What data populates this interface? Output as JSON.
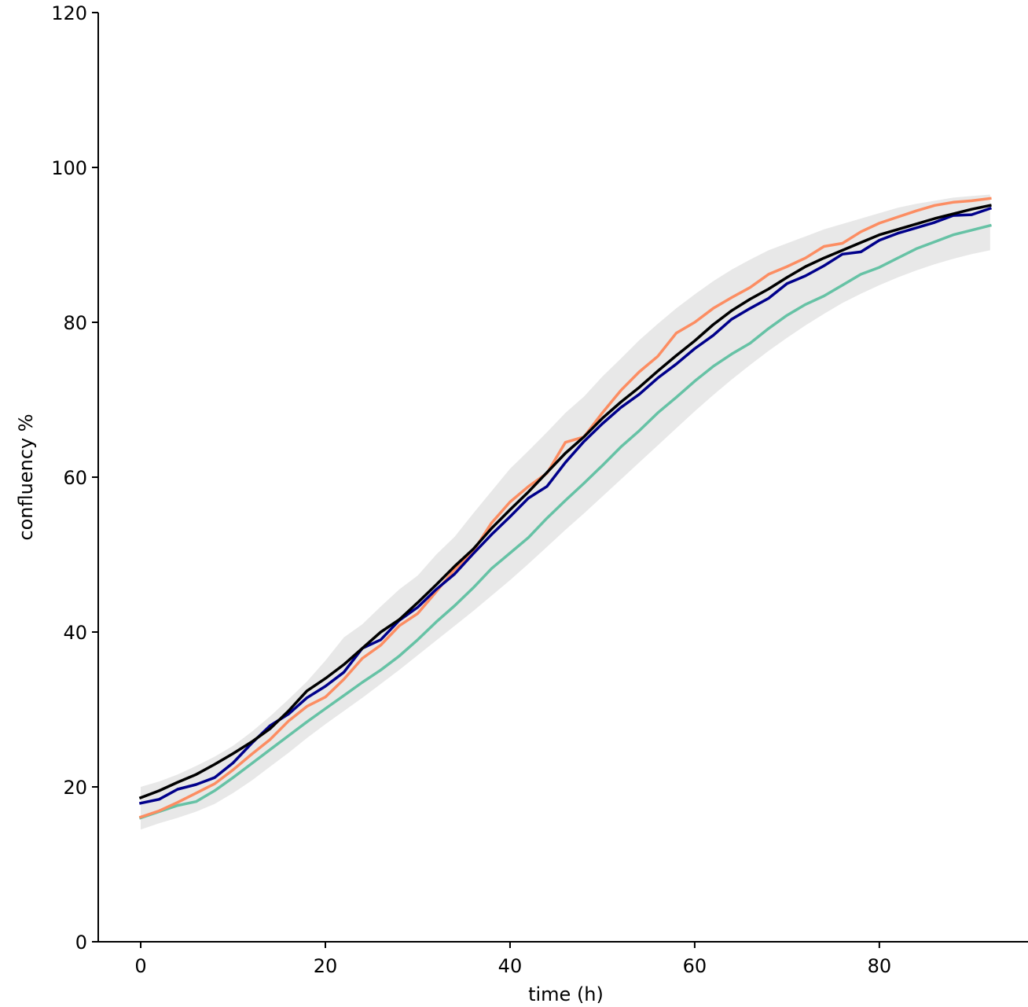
{
  "chart_data": {
    "type": "line",
    "title": "",
    "xlabel": "time (h)",
    "ylabel": "confluency %",
    "xlim": [
      -4.6,
      96.1
    ],
    "ylim": [
      0,
      120
    ],
    "xticks": [
      0,
      20,
      40,
      60,
      80
    ],
    "yticks": [
      0,
      20,
      40,
      60,
      80,
      100,
      120
    ],
    "grid": false,
    "legend": "none",
    "x": [
      0,
      2,
      4,
      6,
      8,
      10,
      12,
      14,
      16,
      18,
      20,
      22,
      24,
      26,
      28,
      30,
      32,
      34,
      36,
      38,
      40,
      42,
      44,
      46,
      48,
      50,
      52,
      54,
      56,
      58,
      60,
      62,
      64,
      66,
      68,
      70,
      72,
      74,
      76,
      78,
      80,
      82,
      84,
      86,
      88,
      90,
      92
    ],
    "band": {
      "color": "#cccccc",
      "lower": [
        14.5,
        15.3,
        16.0,
        16.8,
        17.8,
        19.2,
        20.8,
        22.6,
        24.4,
        26.3,
        28.1,
        29.8,
        31.5,
        33.3,
        35.1,
        37.0,
        38.9,
        40.8,
        42.7,
        44.7,
        46.7,
        48.8,
        51.0,
        53.2,
        55.3,
        57.5,
        59.7,
        61.9,
        64.1,
        66.3,
        68.5,
        70.6,
        72.6,
        74.5,
        76.3,
        78.0,
        79.6,
        81.1,
        82.5,
        83.7,
        84.8,
        85.8,
        86.7,
        87.5,
        88.2,
        88.8,
        89.3
      ],
      "upper": [
        20.0,
        20.7,
        21.6,
        22.7,
        23.9,
        25.3,
        27.1,
        29.1,
        31.3,
        33.6,
        36.3,
        39.3,
        41.0,
        43.3,
        45.5,
        47.3,
        50.0,
        52.3,
        55.3,
        58.2,
        61.1,
        63.4,
        65.8,
        68.3,
        70.4,
        73.0,
        75.3,
        77.7,
        79.8,
        81.8,
        83.6,
        85.3,
        86.8,
        88.1,
        89.3,
        90.2,
        91.1,
        92.0,
        92.7,
        93.4,
        94.1,
        94.8,
        95.3,
        95.7,
        96.1,
        96.3,
        96.5
      ]
    },
    "series": [
      {
        "color": "#66c2a5",
        "values": [
          16.0,
          16.8,
          17.6,
          18.1,
          19.5,
          21.2,
          23.0,
          24.8,
          26.6,
          28.4,
          30.1,
          31.8,
          33.5,
          35.1,
          36.9,
          39.0,
          41.3,
          43.4,
          45.7,
          48.2,
          50.2,
          52.2,
          54.7,
          57.0,
          59.2,
          61.5,
          63.9,
          66.0,
          68.3,
          70.3,
          72.4,
          74.3,
          75.9,
          77.3,
          79.2,
          80.9,
          82.3,
          83.4,
          84.8,
          86.2,
          87.1,
          88.3,
          89.5,
          90.4,
          91.3,
          91.9,
          92.5
        ]
      },
      {
        "color": "#fc8d62",
        "values": [
          16.1,
          16.9,
          18.0,
          19.2,
          20.4,
          22.2,
          24.2,
          26.1,
          28.5,
          30.4,
          31.6,
          33.9,
          36.6,
          38.3,
          40.8,
          42.4,
          45.2,
          48.1,
          50.4,
          54.1,
          56.8,
          58.8,
          60.5,
          64.5,
          65.2,
          68.3,
          71.2,
          73.6,
          75.6,
          78.6,
          80.0,
          81.8,
          83.2,
          84.5,
          86.2,
          87.2,
          88.3,
          89.8,
          90.2,
          91.7,
          92.8,
          93.6,
          94.4,
          95.1,
          95.5,
          95.7,
          96.0
        ]
      },
      {
        "color": "#00008b",
        "values": [
          17.9,
          18.4,
          19.7,
          20.3,
          21.2,
          23.1,
          25.6,
          27.9,
          29.4,
          31.5,
          33.0,
          34.8,
          37.9,
          39.0,
          41.5,
          43.2,
          45.5,
          47.5,
          50.1,
          52.6,
          54.9,
          57.3,
          58.8,
          61.9,
          64.6,
          66.9,
          69.0,
          70.7,
          72.8,
          74.6,
          76.6,
          78.3,
          80.4,
          81.8,
          83.1,
          85.0,
          86.0,
          87.3,
          88.8,
          89.1,
          90.6,
          91.5,
          92.2,
          92.9,
          93.8,
          93.9,
          94.7
        ]
      },
      {
        "color": "#000000",
        "values": [
          18.6,
          19.5,
          20.6,
          21.6,
          22.9,
          24.3,
          25.8,
          27.5,
          29.8,
          32.4,
          34.0,
          35.8,
          37.9,
          40.0,
          41.6,
          43.8,
          46.1,
          48.5,
          50.7,
          53.4,
          55.8,
          58.1,
          60.6,
          63.1,
          65.2,
          67.6,
          69.7,
          71.6,
          73.7,
          75.7,
          77.6,
          79.7,
          81.5,
          83.0,
          84.3,
          85.8,
          87.2,
          88.3,
          89.3,
          90.3,
          91.3,
          92.0,
          92.7,
          93.4,
          94.0,
          94.6,
          95.1
        ]
      }
    ]
  }
}
